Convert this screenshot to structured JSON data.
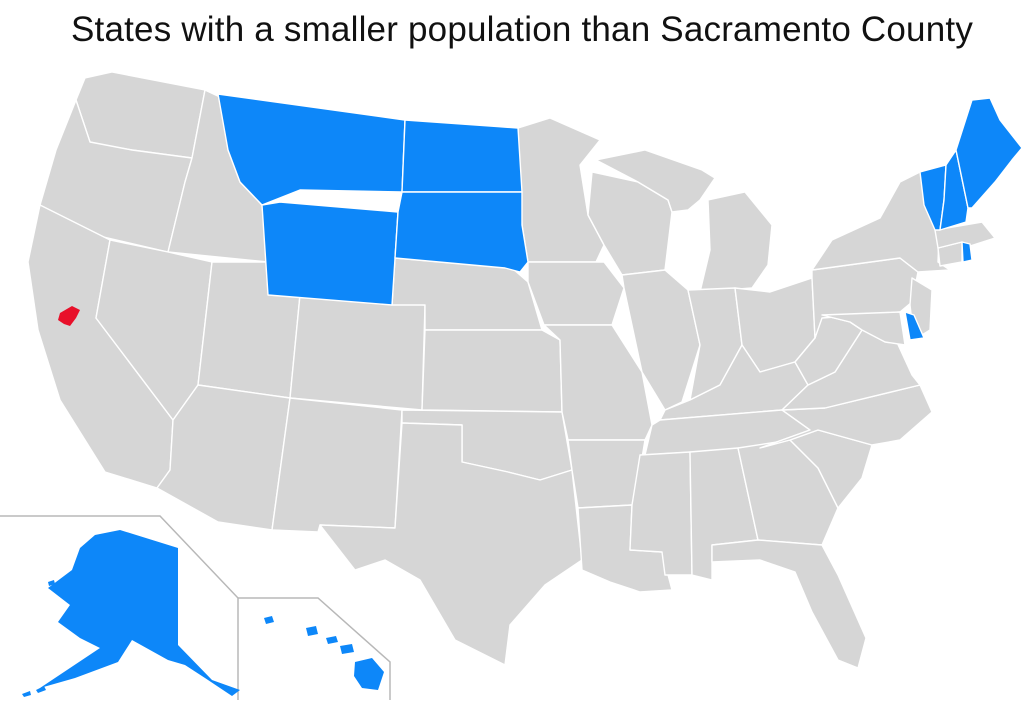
{
  "map": {
    "title": "States with a smaller population than Sacramento County",
    "colors": {
      "background": "#ffffff",
      "default_state": "#d6d6d6",
      "smaller_population": "#0d87f9",
      "sacramento_county": "#e8102a",
      "border": "#ffffff"
    },
    "highlighted_states": [
      "Alaska",
      "Hawaii",
      "Montana",
      "Wyoming",
      "North Dakota",
      "South Dakota",
      "Vermont",
      "New Hampshire",
      "Maine",
      "Rhode Island",
      "Delaware"
    ],
    "highlighted_county": "Sacramento County"
  }
}
